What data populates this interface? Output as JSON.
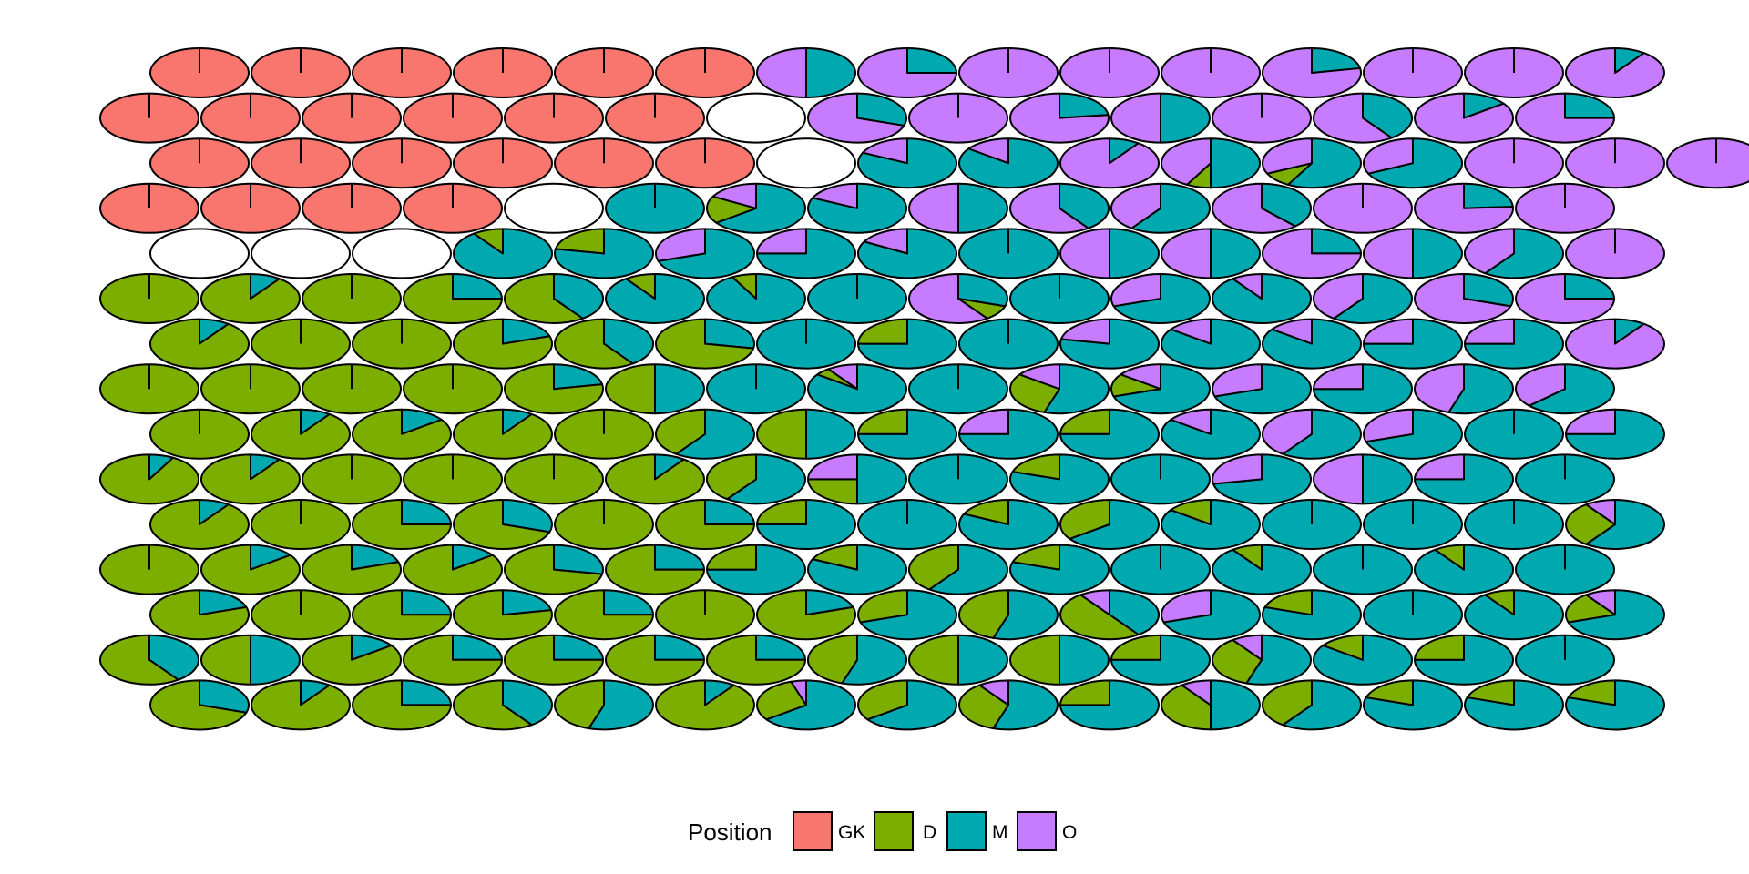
{
  "chart_data": {
    "type": "pie-hexbin",
    "title": "",
    "xlabel": "",
    "ylabel": "",
    "grid": false,
    "legend_position": "bottom",
    "colors": {
      "GK": "#F8766D",
      "D": "#7CAE00",
      "M": "#00A9B0",
      "O": "#C77CFF"
    },
    "legend": {
      "title": "Position",
      "entries": [
        {
          "key": "GK",
          "label": "GK"
        },
        {
          "key": "D",
          "label": "D"
        },
        {
          "key": "M",
          "label": "M"
        },
        {
          "key": "O",
          "label": "O"
        }
      ]
    },
    "row_offsets": [
      1,
      0,
      1,
      0,
      1,
      0,
      1,
      0,
      1,
      0,
      1,
      0,
      1,
      0,
      1
    ],
    "rows": [
      [
        "GK",
        "GK",
        "GK",
        "GK",
        "GK",
        "GK",
        {
          "M": 0.5,
          "O": 0.5
        },
        {
          "M": 0.25,
          "O": 0.75
        },
        "O",
        "O",
        "O",
        {
          "M": 0.22,
          "O": 0.78
        },
        "O",
        "O",
        {
          "M": 0.1,
          "O": 0.9
        }
      ],
      [
        "GK",
        "GK",
        "GK",
        "GK",
        "GK",
        "GK",
        null,
        {
          "M": 0.3,
          "O": 0.7
        },
        "O",
        {
          "M": 0.23,
          "O": 0.77
        },
        {
          "M": 0.5,
          "O": 0.5
        },
        "O",
        {
          "M": 0.4,
          "O": 0.6
        },
        {
          "M": 0.15,
          "O": 0.85
        },
        {
          "M": 0.25,
          "O": 0.75
        }
      ],
      [
        "GK",
        "GK",
        "GK",
        "GK",
        "GK",
        "GK",
        null,
        {
          "M": 0.82,
          "O": 0.18
        },
        {
          "M": 0.85,
          "O": 0.15
        },
        {
          "M": 0.1,
          "O": 0.9
        },
        {
          "M": 0.5,
          "D": 0.08,
          "O": 0.42
        },
        {
          "M": 0.58,
          "D": 0.1,
          "O": 0.32
        },
        {
          "M": 0.68,
          "O": 0.32
        },
        "O",
        "O",
        "O"
      ],
      [
        "GK",
        "GK",
        "GK",
        "GK",
        null,
        "M",
        {
          "M": 0.65,
          "D": 0.18,
          "O": 0.17
        },
        {
          "M": 0.82,
          "O": 0.18
        },
        {
          "M": 0.5,
          "O": 0.5
        },
        {
          "M": 0.4,
          "O": 0.6
        },
        {
          "M": 0.6,
          "O": 0.4
        },
        {
          "M": 0.38,
          "O": 0.62
        },
        "O",
        {
          "M": 0.24,
          "O": 0.76
        },
        "O"
      ],
      [
        null,
        null,
        null,
        {
          "M": 0.9,
          "D": 0.1
        },
        {
          "M": 0.78,
          "D": 0.22
        },
        {
          "M": 0.7,
          "O": 0.3
        },
        {
          "M": 0.75,
          "O": 0.25
        },
        {
          "M": 0.83,
          "O": 0.17
        },
        "M",
        {
          "M": 0.5,
          "O": 0.5
        },
        {
          "M": 0.5,
          "O": 0.5
        },
        {
          "M": 0.25,
          "O": 0.75
        },
        {
          "M": 0.5,
          "O": 0.5
        },
        {
          "M": 0.6,
          "O": 0.4
        },
        "O"
      ],
      [
        "D",
        {
          "D": 0.9,
          "M": 0.1
        },
        "D",
        {
          "D": 0.75,
          "M": 0.25
        },
        {
          "D": 0.6,
          "M": 0.4
        },
        {
          "M": 0.9,
          "D": 0.1
        },
        {
          "M": 0.92,
          "D": 0.08
        },
        "M",
        {
          "M": 0.3,
          "D": 0.1,
          "O": 0.6
        },
        "M",
        {
          "M": 0.7,
          "O": 0.3
        },
        {
          "M": 0.9,
          "O": 0.1
        },
        {
          "M": 0.6,
          "O": 0.4
        },
        {
          "M": 0.3,
          "O": 0.7
        },
        {
          "M": 0.25,
          "O": 0.75
        }
      ],
      [
        {
          "D": 0.9,
          "M": 0.1
        },
        "D",
        "D",
        {
          "D": 0.8,
          "M": 0.2
        },
        {
          "D": 0.6,
          "M": 0.4
        },
        {
          "M": 0.28,
          "D": 0.72
        },
        "M",
        {
          "M": 0.75,
          "D": 0.25
        },
        "M",
        {
          "M": 0.78,
          "O": 0.22
        },
        {
          "M": 0.85,
          "O": 0.15
        },
        {
          "M": 0.85,
          "O": 0.15
        },
        {
          "M": 0.75,
          "O": 0.25
        },
        {
          "M": 0.75,
          "O": 0.25
        },
        {
          "M": 0.1,
          "O": 0.9
        }
      ],
      [
        "D",
        "D",
        "D",
        "D",
        {
          "D": 0.78,
          "M": 0.22
        },
        {
          "D": 0.5,
          "M": 0.5
        },
        "M",
        {
          "M": 0.85,
          "O": 0.1,
          "D": 0.05
        },
        "M",
        {
          "M": 0.55,
          "D": 0.3,
          "O": 0.15
        },
        {
          "M": 0.7,
          "D": 0.15,
          "O": 0.15
        },
        {
          "M": 0.7,
          "O": 0.3
        },
        {
          "M": 0.75,
          "O": 0.25
        },
        {
          "M": 0.55,
          "O": 0.45
        },
        {
          "M": 0.63,
          "O": 0.37
        }
      ],
      [
        "D",
        {
          "D": 0.9,
          "M": 0.1
        },
        {
          "D": 0.85,
          "M": 0.15
        },
        {
          "D": 0.9,
          "M": 0.1
        },
        "D",
        {
          "M": 0.6,
          "D": 0.4
        },
        {
          "M": 0.5,
          "D": 0.5
        },
        {
          "M": 0.75,
          "D": 0.25
        },
        {
          "M": 0.75,
          "O": 0.25
        },
        {
          "M": 0.75,
          "D": 0.25
        },
        {
          "M": 0.85,
          "O": 0.15
        },
        {
          "M": 0.6,
          "O": 0.4
        },
        {
          "M": 0.7,
          "O": 0.3
        },
        "M",
        {
          "M": 0.75,
          "O": 0.25
        }
      ],
      [
        {
          "D": 0.92,
          "M": 0.08
        },
        {
          "D": 0.9,
          "M": 0.1
        },
        "D",
        "D",
        "D",
        {
          "D": 0.9,
          "M": 0.1
        },
        {
          "M": 0.6,
          "D": 0.4
        },
        {
          "M": 0.5,
          "D": 0.25,
          "O": 0.25
        },
        "M",
        {
          "M": 0.8,
          "D": 0.2
        },
        "M",
        {
          "M": 0.72,
          "O": 0.28
        },
        {
          "M": 0.5,
          "O": 0.5
        },
        {
          "M": 0.75,
          "O": 0.25
        },
        "M"
      ],
      [
        {
          "D": 0.9,
          "M": 0.1
        },
        "D",
        {
          "D": 0.75,
          "M": 0.25
        },
        {
          "D": 0.7,
          "M": 0.3
        },
        "D",
        {
          "D": 0.75,
          "M": 0.25
        },
        {
          "M": 0.75,
          "D": 0.25
        },
        "M",
        {
          "M": 0.82,
          "D": 0.18
        },
        {
          "M": 0.65,
          "D": 0.35
        },
        {
          "M": 0.85,
          "D": 0.15
        },
        "M",
        "M",
        "M",
        {
          "M": 0.6,
          "D": 0.3,
          "O": 0.1
        }
      ],
      [
        "D",
        {
          "D": 0.85,
          "M": 0.15
        },
        {
          "D": 0.8,
          "M": 0.2
        },
        {
          "D": 0.85,
          "M": 0.15
        },
        {
          "D": 0.72,
          "M": 0.28
        },
        {
          "D": 0.75,
          "M": 0.25
        },
        {
          "M": 0.75,
          "D": 0.25
        },
        {
          "M": 0.82,
          "D": 0.18
        },
        {
          "M": 0.6,
          "D": 0.4
        },
        {
          "M": 0.8,
          "D": 0.2
        },
        "M",
        {
          "M": 0.9,
          "D": 0.1
        },
        "M",
        {
          "M": 0.9,
          "D": 0.1
        },
        "M"
      ],
      [
        {
          "D": 0.8,
          "M": 0.2
        },
        "D",
        {
          "D": 0.75,
          "M": 0.25
        },
        {
          "D": 0.78,
          "M": 0.22
        },
        {
          "D": 0.75,
          "M": 0.25
        },
        "D",
        {
          "D": 0.8,
          "M": 0.2
        },
        {
          "M": 0.7,
          "D": 0.3
        },
        {
          "M": 0.55,
          "D": 0.45
        },
        {
          "D": 0.5,
          "M": 0.4,
          "O": 0.1
        },
        {
          "M": 0.7,
          "O": 0.3
        },
        {
          "M": 0.8,
          "D": 0.2
        },
        "M",
        {
          "M": 0.9,
          "D": 0.1
        },
        {
          "M": 0.7,
          "D": 0.2,
          "O": 0.1
        }
      ],
      [
        {
          "D": 0.6,
          "M": 0.4
        },
        {
          "D": 0.5,
          "M": 0.5
        },
        {
          "D": 0.85,
          "M": 0.15
        },
        {
          "D": 0.75,
          "M": 0.25
        },
        {
          "D": 0.75,
          "M": 0.25
        },
        {
          "D": 0.75,
          "M": 0.25
        },
        {
          "D": 0.75,
          "M": 0.25
        },
        {
          "M": 0.55,
          "D": 0.45
        },
        {
          "M": 0.5,
          "D": 0.5
        },
        {
          "M": 0.5,
          "D": 0.5
        },
        {
          "M": 0.75,
          "D": 0.25
        },
        {
          "M": 0.55,
          "D": 0.35,
          "O": 0.1
        },
        {
          "M": 0.85,
          "D": 0.15
        },
        {
          "M": 0.75,
          "D": 0.25
        },
        "M"
      ],
      [
        {
          "D": 0.7,
          "M": 0.3
        },
        {
          "D": 0.9,
          "M": 0.1
        },
        {
          "D": 0.75,
          "M": 0.25
        },
        {
          "D": 0.6,
          "M": 0.4
        },
        {
          "M": 0.55,
          "D": 0.45
        },
        {
          "D": 0.9,
          "M": 0.1
        },
        {
          "M": 0.65,
          "D": 0.3,
          "O": 0.05
        },
        {
          "M": 0.65,
          "D": 0.35
        },
        {
          "M": 0.55,
          "D": 0.35,
          "O": 0.1
        },
        {
          "M": 0.75,
          "D": 0.25
        },
        {
          "M": 0.5,
          "D": 0.4,
          "O": 0.1
        },
        {
          "M": 0.6,
          "D": 0.4
        },
        {
          "M": 0.8,
          "D": 0.2
        },
        {
          "M": 0.8,
          "D": 0.2
        },
        {
          "M": 0.8,
          "D": 0.2
        }
      ]
    ]
  }
}
